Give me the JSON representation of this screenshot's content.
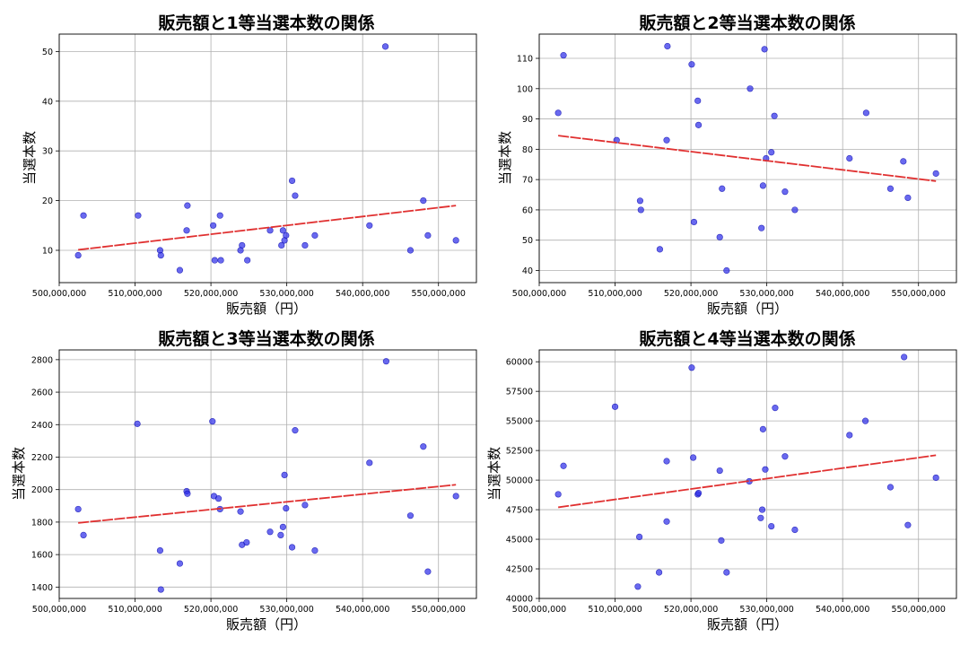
{
  "colors": {
    "point": "#2a2ae8",
    "trend": "#e03030",
    "grid": "#b0b0b0"
  },
  "chart_data": [
    {
      "type": "scatter",
      "title": "販売額と1等当選本数の関係",
      "xlabel": "販売額（円）",
      "ylabel": "当選本数",
      "xlim": [
        500000000,
        555000000
      ],
      "ylim": [
        3.5,
        53.5
      ],
      "xticks": [
        500000000,
        510000000,
        520000000,
        530000000,
        540000000,
        550000000
      ],
      "xtick_labels": [
        "500,000,000",
        "510,000,000",
        "520,000,000",
        "530,000,000",
        "540,000,000",
        "550,000,000"
      ],
      "yticks": [
        10,
        20,
        30,
        40,
        50
      ],
      "ytick_labels": [
        "10",
        "20",
        "30",
        "40",
        "50"
      ],
      "grid": true,
      "points": [
        [
          502500000,
          9
        ],
        [
          503200000,
          17
        ],
        [
          510400000,
          17
        ],
        [
          513300000,
          10
        ],
        [
          513400000,
          9
        ],
        [
          515900000,
          6
        ],
        [
          516800000,
          14
        ],
        [
          516900000,
          19
        ],
        [
          520300000,
          15
        ],
        [
          520500000,
          8
        ],
        [
          521200000,
          17
        ],
        [
          521300000,
          8
        ],
        [
          523900000,
          10
        ],
        [
          524100000,
          11
        ],
        [
          524800000,
          8
        ],
        [
          527800000,
          14
        ],
        [
          529300000,
          11
        ],
        [
          529500000,
          14
        ],
        [
          529700000,
          12
        ],
        [
          529900000,
          13
        ],
        [
          530700000,
          24
        ],
        [
          531100000,
          21
        ],
        [
          532400000,
          11
        ],
        [
          533700000,
          13
        ],
        [
          540900000,
          15
        ],
        [
          543000000,
          51
        ],
        [
          546300000,
          10
        ],
        [
          548000000,
          20
        ],
        [
          548600000,
          13
        ],
        [
          552300000,
          12
        ]
      ],
      "trend": {
        "x": [
          502500000,
          552300000
        ],
        "y": [
          10.1,
          19.0
        ]
      }
    },
    {
      "type": "scatter",
      "title": "販売額と2等当選本数の関係",
      "xlabel": "販売額（円）",
      "ylabel": "当選本数",
      "xlim": [
        500000000,
        555000000
      ],
      "ylim": [
        36,
        118
      ],
      "xticks": [
        500000000,
        510000000,
        520000000,
        530000000,
        540000000,
        550000000
      ],
      "xtick_labels": [
        "500,000,000",
        "510,000,000",
        "520,000,000",
        "530,000,000",
        "540,000,000",
        "550,000,000"
      ],
      "yticks": [
        40,
        50,
        60,
        70,
        80,
        90,
        100,
        110
      ],
      "ytick_labels": [
        "40",
        "50",
        "60",
        "70",
        "80",
        "90",
        "100",
        "110"
      ],
      "grid": true,
      "points": [
        [
          502500000,
          92
        ],
        [
          503200000,
          111
        ],
        [
          510200000,
          83
        ],
        [
          513300000,
          63
        ],
        [
          513400000,
          60
        ],
        [
          515900000,
          47
        ],
        [
          516800000,
          83
        ],
        [
          516900000,
          114
        ],
        [
          520100000,
          108
        ],
        [
          520400000,
          56
        ],
        [
          520900000,
          96
        ],
        [
          521000000,
          88
        ],
        [
          523800000,
          51
        ],
        [
          524100000,
          67
        ],
        [
          524700000,
          40
        ],
        [
          527800000,
          100
        ],
        [
          529300000,
          54
        ],
        [
          529500000,
          68
        ],
        [
          529700000,
          113
        ],
        [
          529900000,
          77
        ],
        [
          530600000,
          79
        ],
        [
          531000000,
          91
        ],
        [
          532400000,
          66
        ],
        [
          533700000,
          60
        ],
        [
          540900000,
          77
        ],
        [
          543100000,
          92
        ],
        [
          546300000,
          67
        ],
        [
          548000000,
          76
        ],
        [
          548600000,
          64
        ],
        [
          552300000,
          72
        ]
      ],
      "trend": {
        "x": [
          502500000,
          552300000
        ],
        "y": [
          84.5,
          69.5
        ]
      }
    },
    {
      "type": "scatter",
      "title": "販売額と3等当選本数の関係",
      "xlabel": "販売額（円）",
      "ylabel": "当選本数",
      "xlim": [
        500000000,
        555000000
      ],
      "ylim": [
        1330,
        2860
      ],
      "xticks": [
        500000000,
        510000000,
        520000000,
        530000000,
        540000000,
        550000000
      ],
      "xtick_labels": [
        "500,000,000",
        "510,000,000",
        "520,000,000",
        "530,000,000",
        "540,000,000",
        "550,000,000"
      ],
      "yticks": [
        1400,
        1600,
        1800,
        2000,
        2200,
        2400,
        2600,
        2800
      ],
      "ytick_labels": [
        "1400",
        "1600",
        "1800",
        "2000",
        "2200",
        "2400",
        "2600",
        "2800"
      ],
      "grid": true,
      "points": [
        [
          502500000,
          1880
        ],
        [
          503200000,
          1720
        ],
        [
          510300000,
          2405
        ],
        [
          513300000,
          1625
        ],
        [
          513400000,
          1385
        ],
        [
          515900000,
          1545
        ],
        [
          516800000,
          1990
        ],
        [
          516900000,
          1975
        ],
        [
          520200000,
          2420
        ],
        [
          520400000,
          1960
        ],
        [
          521000000,
          1945
        ],
        [
          521200000,
          1880
        ],
        [
          523900000,
          1865
        ],
        [
          524100000,
          1660
        ],
        [
          524700000,
          1675
        ],
        [
          527800000,
          1740
        ],
        [
          529200000,
          1720
        ],
        [
          529500000,
          1770
        ],
        [
          529700000,
          2090
        ],
        [
          529900000,
          1885
        ],
        [
          530700000,
          1645
        ],
        [
          531100000,
          2365
        ],
        [
          532400000,
          1905
        ],
        [
          533700000,
          1625
        ],
        [
          540900000,
          2165
        ],
        [
          543100000,
          2790
        ],
        [
          546300000,
          1840
        ],
        [
          548000000,
          2265
        ],
        [
          548600000,
          1495
        ],
        [
          552300000,
          1960
        ]
      ],
      "trend": {
        "x": [
          502500000,
          552300000
        ],
        "y": [
          1795,
          2030
        ]
      }
    },
    {
      "type": "scatter",
      "title": "販売額と4等当選本数の関係",
      "xlabel": "販売額（円）",
      "ylabel": "当選本数",
      "xlim": [
        500000000,
        555000000
      ],
      "ylim": [
        40000,
        61000
      ],
      "xticks": [
        500000000,
        510000000,
        520000000,
        530000000,
        540000000,
        550000000
      ],
      "xtick_labels": [
        "500,000,000",
        "510,000,000",
        "520,000,000",
        "530,000,000",
        "540,000,000",
        "550,000,000"
      ],
      "yticks": [
        40000,
        42500,
        45000,
        47500,
        50000,
        52500,
        55000,
        57500,
        60000
      ],
      "ytick_labels": [
        "40000",
        "42500",
        "45000",
        "47500",
        "50000",
        "52500",
        "55000",
        "57500",
        "60000"
      ],
      "grid": true,
      "points": [
        [
          502500000,
          48800
        ],
        [
          503200000,
          51200
        ],
        [
          510000000,
          56200
        ],
        [
          513000000,
          41000
        ],
        [
          513200000,
          45200
        ],
        [
          515800000,
          42200
        ],
        [
          516800000,
          46500
        ],
        [
          516800000,
          51600
        ],
        [
          520100000,
          59500
        ],
        [
          520300000,
          51900
        ],
        [
          520900000,
          48800
        ],
        [
          521000000,
          48900
        ],
        [
          523800000,
          50800
        ],
        [
          524000000,
          44900
        ],
        [
          524700000,
          42200
        ],
        [
          527700000,
          49900
        ],
        [
          529200000,
          46800
        ],
        [
          529400000,
          47500
        ],
        [
          529500000,
          54300
        ],
        [
          529800000,
          50900
        ],
        [
          530600000,
          46100
        ],
        [
          531100000,
          56100
        ],
        [
          532400000,
          52000
        ],
        [
          533700000,
          45800
        ],
        [
          540900000,
          53800
        ],
        [
          543000000,
          55000
        ],
        [
          546300000,
          49400
        ],
        [
          548100000,
          60400
        ],
        [
          548600000,
          46200
        ],
        [
          552300000,
          50200
        ]
      ],
      "trend": {
        "x": [
          502500000,
          552300000
        ],
        "y": [
          47700,
          52100
        ]
      }
    }
  ]
}
